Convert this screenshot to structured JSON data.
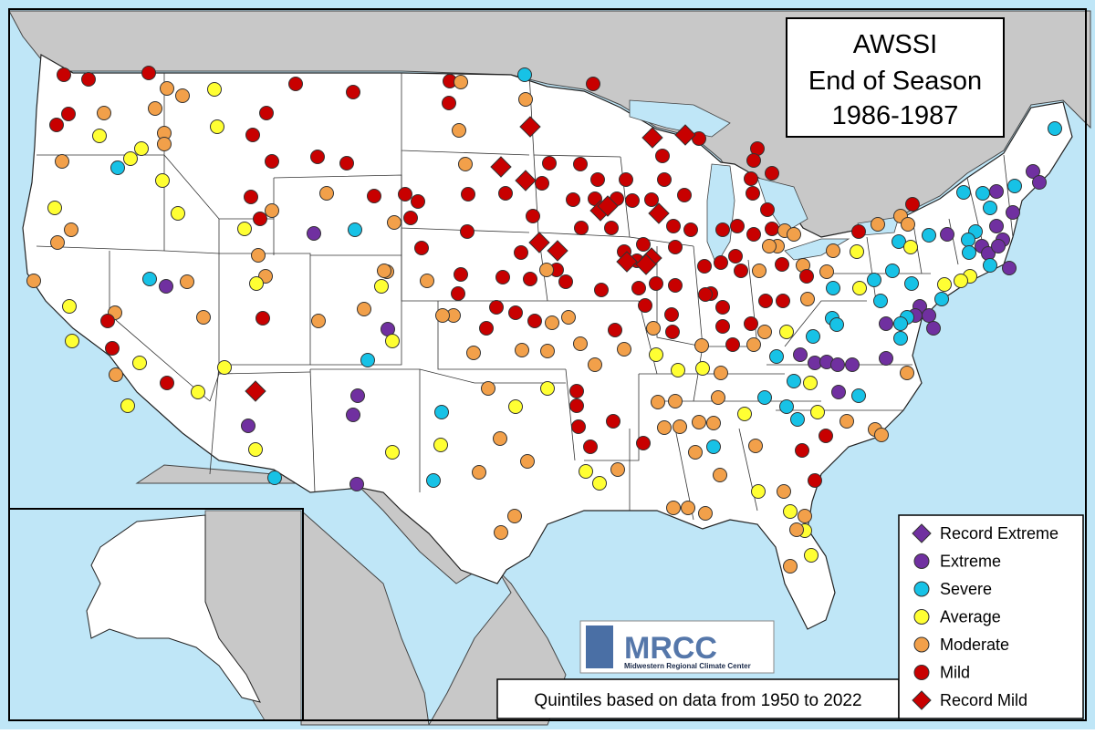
{
  "title": {
    "line1": "AWSSI",
    "line2": "End of Season",
    "line3": "1986-1987"
  },
  "footnote": "Quintiles based on data from 1950 to 2022",
  "logo": {
    "name": "MRCC",
    "subtitle": "Midwestern Regional Climate Center"
  },
  "colors": {
    "record_extreme": "#7030A0",
    "extreme": "#7030A0",
    "severe": "#17C2E6",
    "average": "#FFFF33",
    "moderate": "#F2A04A",
    "mild": "#C80000",
    "record_mild": "#C80000",
    "ocean": "#BFE6F7",
    "foreign_land": "#C8C8C8",
    "us_land": "#FFFFFF"
  },
  "legend": [
    {
      "key": "record_extreme",
      "label": "Record Extreme",
      "marker": "diamond"
    },
    {
      "key": "extreme",
      "label": "Extreme",
      "marker": "circle"
    },
    {
      "key": "severe",
      "label": "Severe",
      "marker": "circle"
    },
    {
      "key": "average",
      "label": "Average",
      "marker": "circle"
    },
    {
      "key": "moderate",
      "label": "Moderate",
      "marker": "circle"
    },
    {
      "key": "mild",
      "label": "Mild",
      "marker": "circle"
    },
    {
      "key": "record_mild",
      "label": "Record Mild",
      "marker": "diamond"
    }
  ]
}
